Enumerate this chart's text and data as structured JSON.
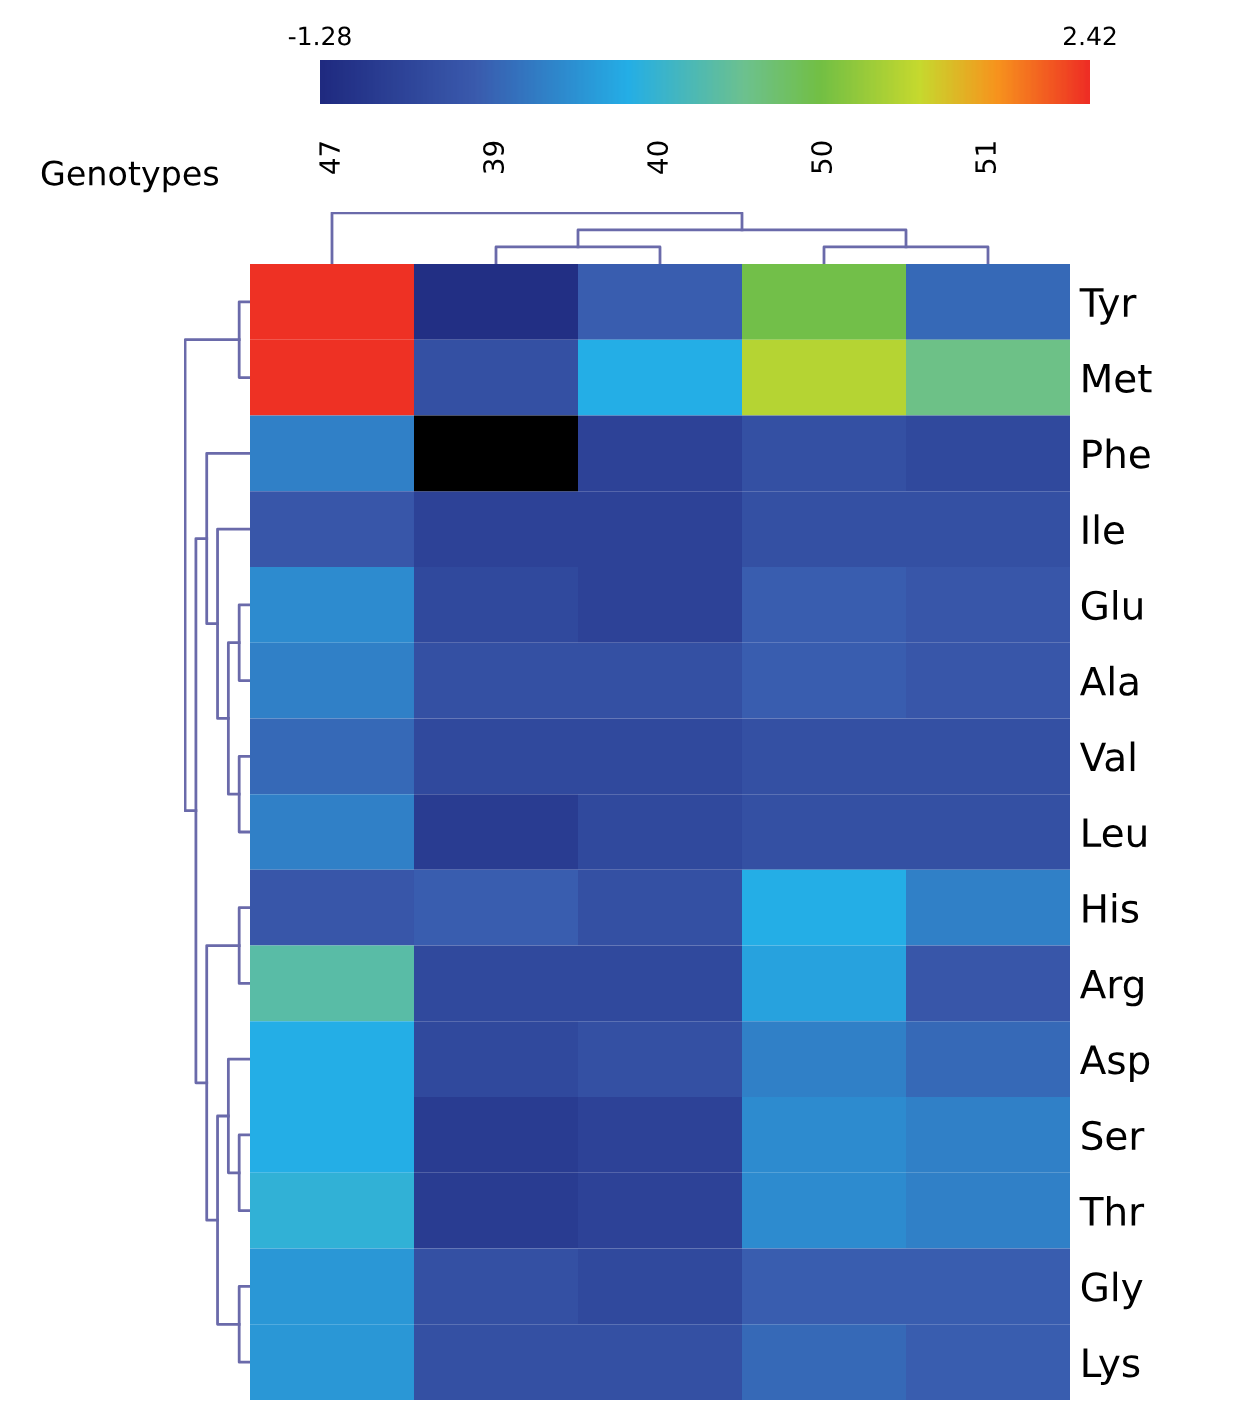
{
  "chart_data": {
    "type": "heatmap",
    "xlabel": "Genotypes",
    "categories": [
      "47",
      "39",
      "40",
      "50",
      "51"
    ],
    "y_categories": [
      "Tyr",
      "Met",
      "Phe",
      "Ile",
      "Glu",
      "Ala",
      "Val",
      "Leu",
      "His",
      "Arg",
      "Asp",
      "Ser",
      "Thr",
      "Gly",
      "Lys"
    ],
    "cells": [
      [
        2.4,
        -1.2,
        -0.5,
        1.1,
        -0.4
      ],
      [
        2.4,
        -0.7,
        0.2,
        1.5,
        0.8
      ],
      [
        -0.2,
        null,
        -0.9,
        -0.7,
        -0.8
      ],
      [
        -0.6,
        -0.9,
        -0.9,
        -0.7,
        -0.7
      ],
      [
        -0.1,
        -0.8,
        -0.9,
        -0.5,
        -0.6
      ],
      [
        -0.2,
        -0.7,
        -0.7,
        -0.5,
        -0.6
      ],
      [
        -0.4,
        -0.8,
        -0.8,
        -0.7,
        -0.7
      ],
      [
        -0.2,
        -1.0,
        -0.8,
        -0.7,
        -0.7
      ],
      [
        -0.6,
        -0.5,
        -0.7,
        0.2,
        -0.2
      ],
      [
        0.6,
        -0.8,
        -0.8,
        0.1,
        -0.6
      ],
      [
        0.2,
        -0.8,
        -0.7,
        -0.2,
        -0.4
      ],
      [
        0.2,
        -1.0,
        -0.9,
        -0.1,
        -0.2
      ],
      [
        0.3,
        -1.0,
        -0.9,
        -0.1,
        -0.2
      ],
      [
        0.0,
        -0.7,
        -0.8,
        -0.5,
        -0.5
      ],
      [
        0.0,
        -0.7,
        -0.7,
        -0.4,
        -0.5
      ]
    ],
    "clim": [
      -1.28,
      2.42
    ],
    "cticks": [
      -1.28,
      2.42
    ]
  }
}
